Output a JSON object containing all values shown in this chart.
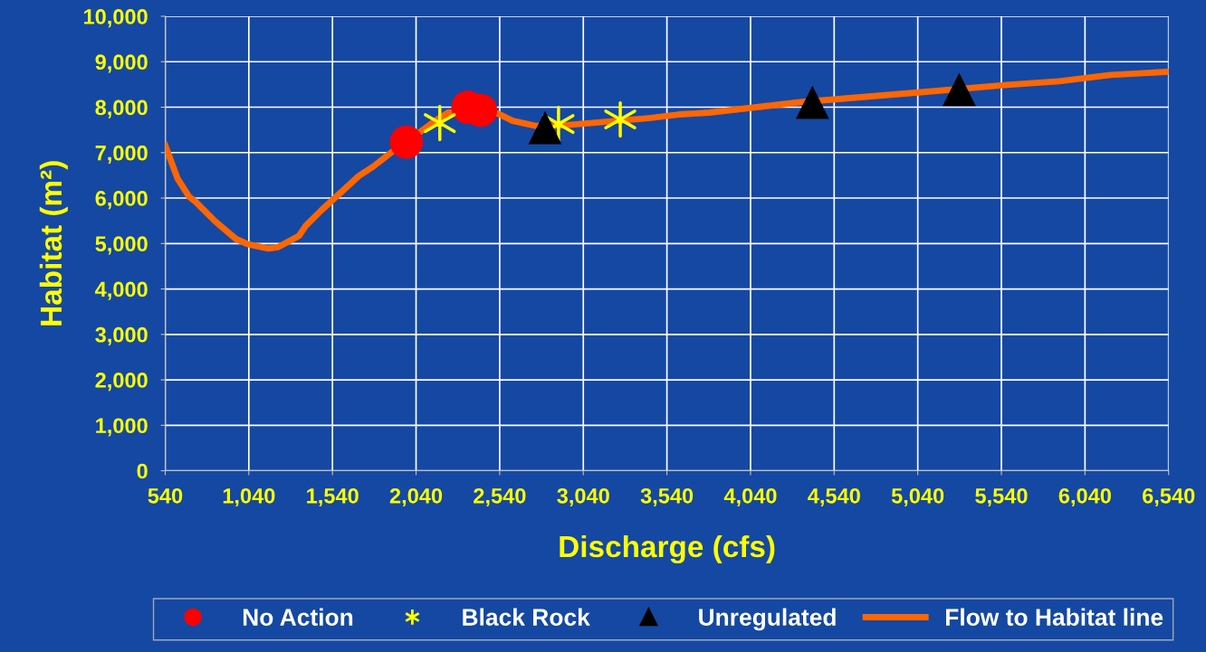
{
  "chart_data": {
    "type": "line",
    "xlabel": "Discharge (cfs)",
    "ylabel": "Habitat (m²)",
    "xlim": [
      540,
      6540
    ],
    "ylim": [
      0,
      10000
    ],
    "xticks": [
      540,
      {
        "value": 1040,
        "label": "1,040"
      },
      {
        "value": 1540,
        "label": "1,540"
      },
      {
        "value": 2040,
        "label": "2,040"
      },
      {
        "value": 2540,
        "label": "2,540"
      },
      {
        "value": 3040,
        "label": "3,040"
      },
      {
        "value": 3540,
        "label": "3,540"
      },
      {
        "value": 4040,
        "label": "4,040"
      },
      {
        "value": 4540,
        "label": "4,540"
      },
      {
        "value": 5040,
        "label": "5,040"
      },
      {
        "value": 5540,
        "label": "5,540"
      },
      {
        "value": 6040,
        "label": "6,040"
      },
      {
        "value": 6540,
        "label": "6,540"
      }
    ],
    "yticks": [
      0,
      {
        "value": 1000,
        "label": "1,000"
      },
      {
        "value": 2000,
        "label": "2,000"
      },
      {
        "value": 3000,
        "label": "3,000"
      },
      {
        "value": 4000,
        "label": "4,000"
      },
      {
        "value": 5000,
        "label": "5,000"
      },
      {
        "value": 6000,
        "label": "6,000"
      },
      {
        "value": 7000,
        "label": "7,000"
      },
      {
        "value": 8000,
        "label": "8,000"
      },
      {
        "value": 9000,
        "label": "9,000"
      },
      {
        "value": 10000,
        "label": "10,000"
      }
    ],
    "grid": true,
    "legend": "bottom",
    "series": [
      {
        "name": "No Action",
        "type": "scatter",
        "marker": "circle",
        "color": "#ff0000",
        "x": [
          1982,
          2350,
          2426
        ],
        "values": [
          7230,
          8000,
          7930
        ]
      },
      {
        "name": "Black Rock",
        "type": "scatter",
        "marker": "cross",
        "color": "#ffff00",
        "x": [
          2182,
          2892,
          3261
        ],
        "values": [
          7650,
          7630,
          7730
        ]
      },
      {
        "name": "Unregulated",
        "type": "scatter",
        "marker": "triangle",
        "color": "#000000",
        "x": [
          2811,
          4410,
          5288
        ],
        "values": [
          7550,
          8110,
          8390
        ]
      },
      {
        "name": "Flow to Habitat line",
        "marker": "none",
        "line_style": "solid",
        "color": "#ff6600",
        "x": [
          540,
          615,
          683,
          721,
          838,
          963,
          1031,
          1157,
          1215,
          1340,
          1380,
          1476,
          1699,
          1786,
          1911,
          1982,
          2154,
          2230,
          2530,
          2618,
          2754,
          2889,
          3433,
          3613,
          3794,
          4336,
          5059,
          5575,
          5884,
          6193,
          6540
        ],
        "values": [
          7160,
          6420,
          6030,
          5920,
          5490,
          5100,
          4990,
          4890,
          4920,
          5170,
          5390,
          5740,
          6490,
          6700,
          7060,
          7230,
          7700,
          7880,
          7860,
          7700,
          7590,
          7590,
          7760,
          7840,
          7880,
          8110,
          8330,
          8490,
          8570,
          8710,
          8780
        ]
      }
    ]
  }
}
